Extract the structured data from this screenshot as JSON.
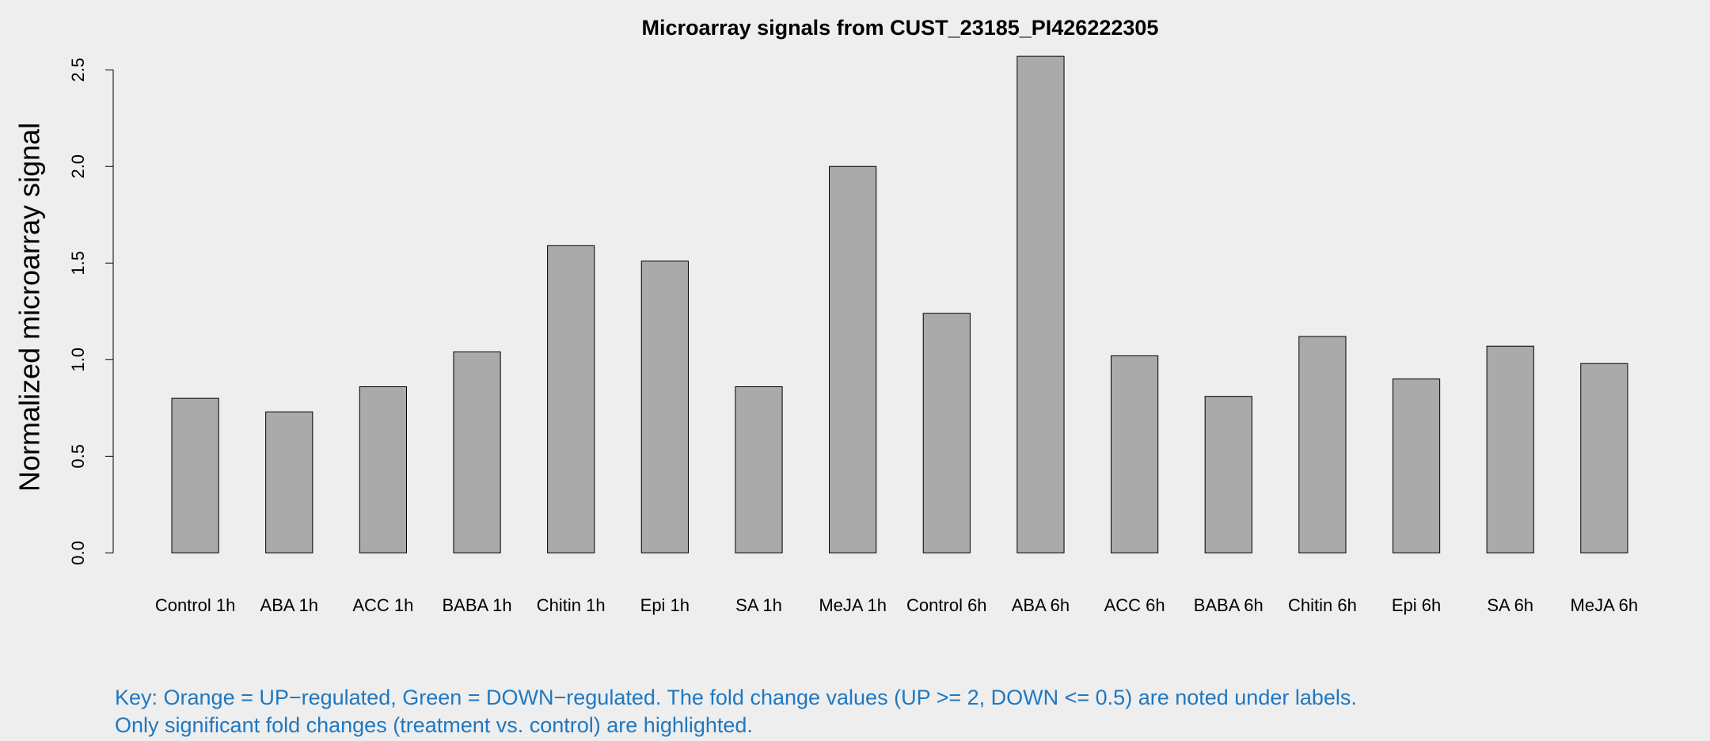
{
  "chart_data": {
    "type": "bar",
    "title": "Microarray signals from CUST_23185_PI426222305",
    "y_label": "Normalized microarray signal",
    "categories": [
      "Control 1h",
      "ABA 1h",
      "ACC 1h",
      "BABA 1h",
      "Chitin 1h",
      "Epi 1h",
      "SA 1h",
      "MeJA 1h",
      "Control 6h",
      "ABA 6h",
      "ACC 6h",
      "BABA 6h",
      "Chitin 6h",
      "Epi 6h",
      "SA 6h",
      "MeJA 6h"
    ],
    "values": [
      0.8,
      0.73,
      0.86,
      1.04,
      1.59,
      1.51,
      0.86,
      2.0,
      1.24,
      2.57,
      1.02,
      0.81,
      1.12,
      0.9,
      1.07,
      0.98
    ],
    "color": "#aaaaaa",
    "ylim": [
      0,
      2.5
    ],
    "yticks": [
      {
        "value": 0,
        "label": "0.0"
      },
      0.5,
      {
        "value": 1,
        "label": "1.0"
      },
      1.5,
      {
        "value": 2,
        "label": "2.0"
      },
      2.5
    ],
    "grid": false,
    "notes": [
      "Key: Orange = UP−regulated, Green = DOWN−regulated. The fold change values (UP >= 2, DOWN <= 0.5) are noted under labels.",
      "Only significant fold changes (treatment vs. control) are highlighted."
    ],
    "notes_color": "#1f78c1"
  }
}
